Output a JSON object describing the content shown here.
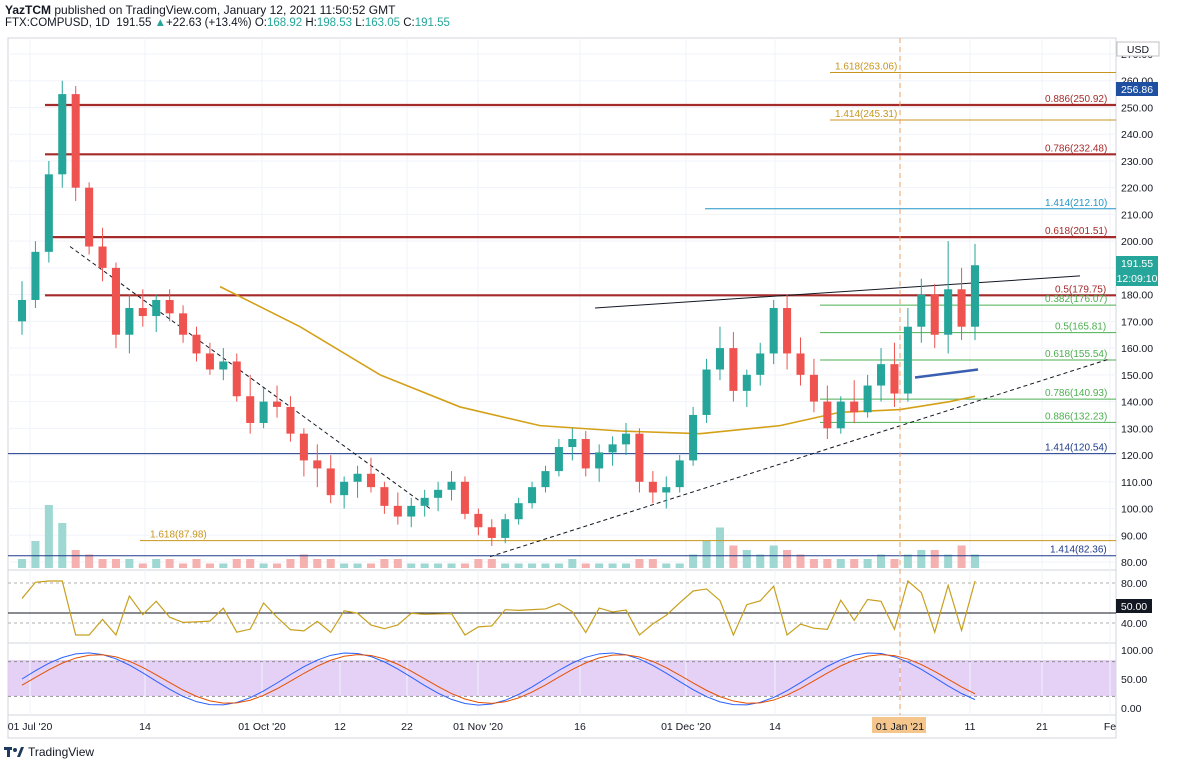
{
  "header": {
    "publisher_line_prefix": "YazTCM",
    "publisher_line_rest": " published on TradingView.com, January 12, 2021 11:50:52 GMT",
    "symbol": "FTX:COMPUSD, 1D",
    "last": "191.55",
    "change_arrow": "▲",
    "change": "+22.63 (+13.4%)",
    "o_label": "O:",
    "o": "168.92",
    "h_label": "H:",
    "h": "198.53",
    "l_label": "L:",
    "l": "163.05",
    "c_label": "C:",
    "c": "191.55"
  },
  "currency_label": "USD",
  "price_badge": {
    "price": "191.55",
    "countdown": "12:09:10"
  },
  "top_badge": "256.86",
  "footer_brand": "TradingView",
  "rsi_badge": "50.00",
  "colors": {
    "up": "#26a69a",
    "down": "#ef5350",
    "fib_orange": "#c8961e",
    "fib_red": "#a52a2a",
    "fib_green": "#4caf50",
    "fib_blue": "#1e3a8a",
    "ma": "#d4a017",
    "stoch_bg": "#e1c8f5"
  },
  "chart_data": {
    "type": "candlestick",
    "price_axis": {
      "ticks": [
        "270.00",
        "260.00",
        "250.00",
        "240.00",
        "230.00",
        "220.00",
        "210.00",
        "200.00",
        "190.00",
        "180.00",
        "170.00",
        "160.00",
        "150.00",
        "140.00",
        "130.00",
        "120.00",
        "110.00",
        "100.00",
        "90.00",
        "80.00"
      ]
    },
    "time_axis": {
      "ticks": [
        "01 Jul '20",
        "14",
        "01 Oct '20",
        "12",
        "22",
        "01 Nov '20",
        "16",
        "01 Dec '20",
        "14",
        "01 Jan '21",
        "11",
        "21",
        "Fe"
      ]
    },
    "fib_levels": [
      {
        "label": "1.618(263.06)",
        "price": 263.06,
        "color": "orange"
      },
      {
        "label": "0.886(250.92)",
        "price": 250.92,
        "color": "red"
      },
      {
        "label": "1.414(245.31)",
        "price": 245.31,
        "color": "orange"
      },
      {
        "label": "0.786(232.48)",
        "price": 232.48,
        "color": "red"
      },
      {
        "label": "1.414(212.10)",
        "price": 212.1,
        "color": "teal"
      },
      {
        "label": "0.618(201.51)",
        "price": 201.51,
        "color": "red"
      },
      {
        "label": "0.5(179.75)",
        "price": 179.75,
        "color": "red"
      },
      {
        "label": "0.382(176.07)",
        "price": 176.07,
        "color": "green"
      },
      {
        "label": "0.5(165.81)",
        "price": 165.81,
        "color": "green"
      },
      {
        "label": "0.618(155.54)",
        "price": 155.54,
        "color": "green"
      },
      {
        "label": "0.786(140.93)",
        "price": 140.93,
        "color": "green"
      },
      {
        "label": "0.886(132.23)",
        "price": 132.23,
        "color": "green"
      },
      {
        "label": "1.414(120.54)",
        "price": 120.54,
        "color": "blue"
      },
      {
        "label": "1.618(87.98)",
        "price": 87.98,
        "color": "orange"
      },
      {
        "label": "1.414(82.36)",
        "price": 82.36,
        "color": "blue"
      }
    ],
    "candles": [
      [
        170,
        185,
        165,
        178
      ],
      [
        178,
        200,
        175,
        196
      ],
      [
        196,
        230,
        192,
        225
      ],
      [
        225,
        260,
        220,
        255
      ],
      [
        255,
        258,
        215,
        220
      ],
      [
        220,
        222,
        195,
        198
      ],
      [
        198,
        205,
        185,
        190
      ],
      [
        190,
        192,
        160,
        165
      ],
      [
        165,
        180,
        158,
        175
      ],
      [
        175,
        182,
        168,
        172
      ],
      [
        172,
        180,
        166,
        178
      ],
      [
        178,
        182,
        170,
        173
      ],
      [
        173,
        176,
        162,
        165
      ],
      [
        165,
        168,
        155,
        158
      ],
      [
        158,
        162,
        150,
        152
      ],
      [
        152,
        160,
        148,
        155
      ],
      [
        155,
        158,
        140,
        142
      ],
      [
        142,
        150,
        128,
        132
      ],
      [
        132,
        145,
        130,
        140
      ],
      [
        140,
        146,
        134,
        138
      ],
      [
        138,
        142,
        125,
        128
      ],
      [
        128,
        130,
        112,
        118
      ],
      [
        118,
        124,
        108,
        115
      ],
      [
        115,
        120,
        102,
        105
      ],
      [
        105,
        112,
        100,
        110
      ],
      [
        110,
        116,
        104,
        113
      ],
      [
        113,
        119,
        106,
        108
      ],
      [
        108,
        110,
        98,
        101
      ],
      [
        101,
        106,
        94,
        97
      ],
      [
        97,
        104,
        93,
        101
      ],
      [
        101,
        107,
        97,
        104
      ],
      [
        104,
        110,
        99,
        107
      ],
      [
        107,
        114,
        103,
        110
      ],
      [
        110,
        112,
        96,
        98
      ],
      [
        98,
        100,
        90,
        93
      ],
      [
        93,
        96,
        86,
        89
      ],
      [
        89,
        98,
        87,
        96
      ],
      [
        96,
        104,
        94,
        102
      ],
      [
        102,
        110,
        100,
        108
      ],
      [
        108,
        116,
        106,
        114
      ],
      [
        114,
        126,
        112,
        123
      ],
      [
        123,
        130,
        118,
        126
      ],
      [
        126,
        129,
        112,
        115
      ],
      [
        115,
        124,
        110,
        121
      ],
      [
        121,
        127,
        116,
        124
      ],
      [
        124,
        132,
        120,
        128
      ],
      [
        128,
        130,
        106,
        110
      ],
      [
        110,
        114,
        102,
        106
      ],
      [
        106,
        112,
        100,
        108
      ],
      [
        108,
        120,
        106,
        118
      ],
      [
        118,
        138,
        116,
        135
      ],
      [
        135,
        156,
        132,
        152
      ],
      [
        152,
        168,
        148,
        160
      ],
      [
        160,
        166,
        140,
        144
      ],
      [
        144,
        152,
        138,
        150
      ],
      [
        150,
        162,
        146,
        158
      ],
      [
        158,
        178,
        154,
        175
      ],
      [
        175,
        180,
        152,
        158
      ],
      [
        158,
        164,
        146,
        150
      ],
      [
        150,
        156,
        136,
        140
      ],
      [
        140,
        146,
        126,
        130
      ],
      [
        130,
        142,
        128,
        140
      ],
      [
        140,
        148,
        132,
        136
      ],
      [
        136,
        150,
        134,
        146
      ],
      [
        146,
        160,
        140,
        154
      ],
      [
        154,
        162,
        138,
        143
      ],
      [
        143,
        175,
        140,
        168
      ],
      [
        168,
        186,
        162,
        180
      ],
      [
        180,
        184,
        160,
        165
      ],
      [
        165,
        200,
        158,
        182
      ],
      [
        182,
        190,
        163,
        168
      ],
      [
        168,
        199,
        163,
        191
      ]
    ],
    "volume": [
      2,
      6,
      14,
      10,
      4,
      3,
      2,
      2,
      2,
      1,
      2,
      2,
      1,
      2,
      1,
      1,
      2,
      2,
      1,
      1,
      2,
      3,
      2,
      2,
      1,
      1,
      1,
      2,
      2,
      1,
      1,
      1,
      1,
      1,
      2,
      2,
      1,
      1,
      1,
      1,
      1,
      2,
      1,
      1,
      1,
      1,
      2,
      2,
      1,
      1,
      3,
      6,
      9,
      5,
      4,
      3,
      5,
      4,
      3,
      2,
      2,
      2,
      2,
      2,
      3,
      2,
      3,
      4,
      4,
      3,
      5,
      3
    ],
    "rsi": {
      "ticks": [
        "80.00",
        "50.00",
        "40.00"
      ]
    },
    "stoch": {
      "ticks": [
        "100.00",
        "50.00",
        "0.00"
      ]
    }
  }
}
